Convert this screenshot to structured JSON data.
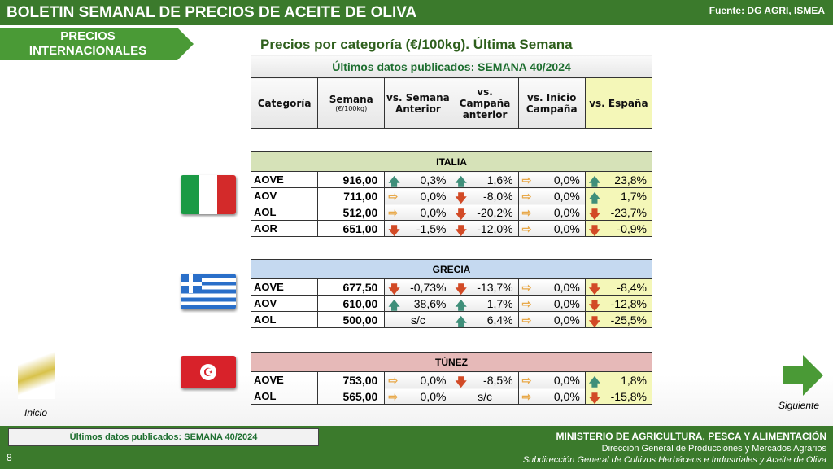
{
  "header": {
    "title": "BOLETIN SEMANAL DE PRECIOS DE ACEITE DE OLIVA",
    "source": "Fuente: DG AGRI, ISMEA"
  },
  "tab": {
    "line1": "PRECIOS",
    "line2": "INTERNACIONALES"
  },
  "main_title": {
    "text": "Precios por categoría (€/100kg). ",
    "underlined": "Última Semana"
  },
  "table_header": {
    "published": "Últimos datos publicados: SEMANA 40/2024",
    "columns": [
      "Categoría",
      "Semana",
      "vs. Semana Anterior",
      "vs. Campaña anterior",
      "vs. Inicio Campaña",
      "vs. España"
    ],
    "unit": "(€/100kg)"
  },
  "countries": [
    {
      "name": "ITALIA",
      "color": "#d6e2b8",
      "rows": [
        {
          "cat": "AOVE",
          "price": "916,00",
          "cells": [
            [
              "up",
              "0,3%"
            ],
            [
              "up",
              "1,6%"
            ],
            [
              "right",
              "0,0%"
            ],
            [
              "up",
              "23,8%"
            ]
          ]
        },
        {
          "cat": "AOV",
          "price": "711,00",
          "cells": [
            [
              "right",
              "0,0%"
            ],
            [
              "down",
              "-8,0%"
            ],
            [
              "right",
              "0,0%"
            ],
            [
              "up",
              "1,7%"
            ]
          ]
        },
        {
          "cat": "AOL",
          "price": "512,00",
          "cells": [
            [
              "right",
              "0,0%"
            ],
            [
              "down",
              "-20,2%"
            ],
            [
              "right",
              "0,0%"
            ],
            [
              "down",
              "-23,7%"
            ]
          ]
        },
        {
          "cat": "AOR",
          "price": "651,00",
          "cells": [
            [
              "down",
              "-1,5%"
            ],
            [
              "down",
              "-12,0%"
            ],
            [
              "right",
              "0,0%"
            ],
            [
              "down",
              "-0,9%"
            ]
          ]
        }
      ]
    },
    {
      "name": "GRECIA",
      "color": "#c5d9f0",
      "rows": [
        {
          "cat": "AOVE",
          "price": "677,50",
          "cells": [
            [
              "down",
              "-0,73%"
            ],
            [
              "down",
              "-13,7%"
            ],
            [
              "right",
              "0,0%"
            ],
            [
              "down",
              "-8,4%"
            ]
          ]
        },
        {
          "cat": "AOV",
          "price": "610,00",
          "cells": [
            [
              "up",
              "38,6%"
            ],
            [
              "up",
              "1,7%"
            ],
            [
              "right",
              "0,0%"
            ],
            [
              "down",
              "-12,8%"
            ]
          ]
        },
        {
          "cat": "AOL",
          "price": "500,00",
          "cells": [
            [
              null,
              "s/c"
            ],
            [
              "up",
              "6,4%"
            ],
            [
              "right",
              "0,0%"
            ],
            [
              "down",
              "-25,5%"
            ]
          ]
        }
      ]
    },
    {
      "name": "TÚNEZ",
      "color": "#e6b9b8",
      "rows": [
        {
          "cat": "AOVE",
          "price": "753,00",
          "cells": [
            [
              "right",
              "0,0%"
            ],
            [
              "down",
              "-8,5%"
            ],
            [
              "right",
              "0,0%"
            ],
            [
              "up",
              "1,8%"
            ]
          ]
        },
        {
          "cat": "AOL",
          "price": "565,00",
          "cells": [
            [
              "right",
              "0,0%"
            ],
            [
              null,
              "s/c"
            ],
            [
              "right",
              "0,0%"
            ],
            [
              "down",
              "-15,8%"
            ]
          ]
        }
      ]
    }
  ],
  "nav": {
    "home": "Inicio",
    "next": "Siguiente"
  },
  "footer": {
    "published": "Últimos datos publicados: SEMANA 40/2024",
    "page": "8",
    "ministry": "MINISTERIO DE AGRICULTURA, PESCA Y ALIMENTACIÓN",
    "dg": "Dirección General de Producciones y Mercados Agrarios",
    "sub": "Subdirección General de Cultivos Herbáceos e Industriales y Aceite de Oliva"
  }
}
